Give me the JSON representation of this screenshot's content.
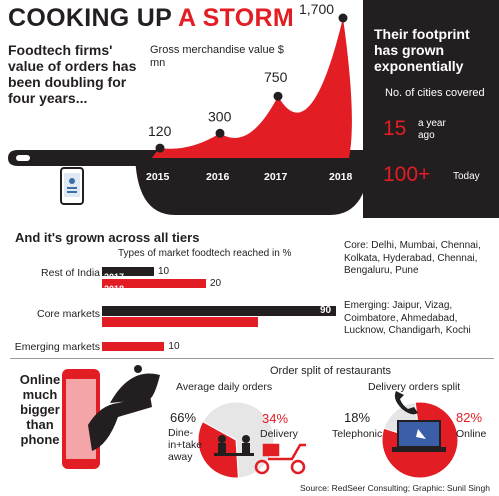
{
  "headline": {
    "part1": "COOKING UP",
    "part2": "A STORM"
  },
  "lede": "Foodtech firms' value of orders has been doubling for four years...",
  "chart_data": [
    {
      "type": "area",
      "ylabel": "Gross merchandise value $ mn",
      "categories": [
        "2015",
        "2016",
        "2017",
        "2018"
      ],
      "values": [
        120,
        300,
        750,
        1700
      ],
      "value_labels": [
        "120",
        "300",
        "750",
        "1,700"
      ]
    },
    {
      "type": "bar",
      "title": "And it's grown across all tiers",
      "subtitle": "Types of market foodtech reached in %",
      "categories": [
        "Rest of India",
        "Core markets",
        "Emerging markets"
      ],
      "series": [
        {
          "name": "2017",
          "values": [
            10,
            90,
            null
          ]
        },
        {
          "name": "2018",
          "values": [
            20,
            50,
            10
          ]
        }
      ],
      "value_labels": {
        "rest_2017": "10",
        "rest_2018": "20",
        "core_2017": "90",
        "emerging_2018": "10"
      },
      "colors": {
        "2017": "#231f20",
        "2018": "#e31d24"
      }
    },
    {
      "type": "pie",
      "title": "Average daily orders",
      "slices": [
        {
          "label": "Dine-in+take away",
          "value": 66,
          "display": "66%"
        },
        {
          "label": "Delivery",
          "value": 34,
          "display": "34%"
        }
      ]
    },
    {
      "type": "pie",
      "title": "Delivery orders split",
      "slices": [
        {
          "label": "Telephonic",
          "value": 18,
          "display": "18%"
        },
        {
          "label": "Online",
          "value": 82,
          "display": "82%"
        }
      ]
    }
  ],
  "footprint": {
    "heading": "Their footprint has grown exponentially",
    "sub": "No. of cities covered",
    "then_value": "15",
    "then_caption": "a year ago",
    "now_value": "100+",
    "now_caption": "Today"
  },
  "markets": {
    "core": "Core: Delhi, Mumbai, Chennai, Kolkata, Hyderabad, Chennai, Bengaluru, Pune",
    "emerging": "Emerging: Jaipur, Vizag, Coimbatore, Ahmedabad, Lucknow, Chandigarh, Kochi"
  },
  "online_heading": "Online much bigger than phone",
  "split_heading": "Order split of restaurants",
  "source": "Source: RedSeer Consulting; Graphic: Sunil Singh",
  "colors": {
    "accent": "#e31d24",
    "dark": "#231f20"
  }
}
